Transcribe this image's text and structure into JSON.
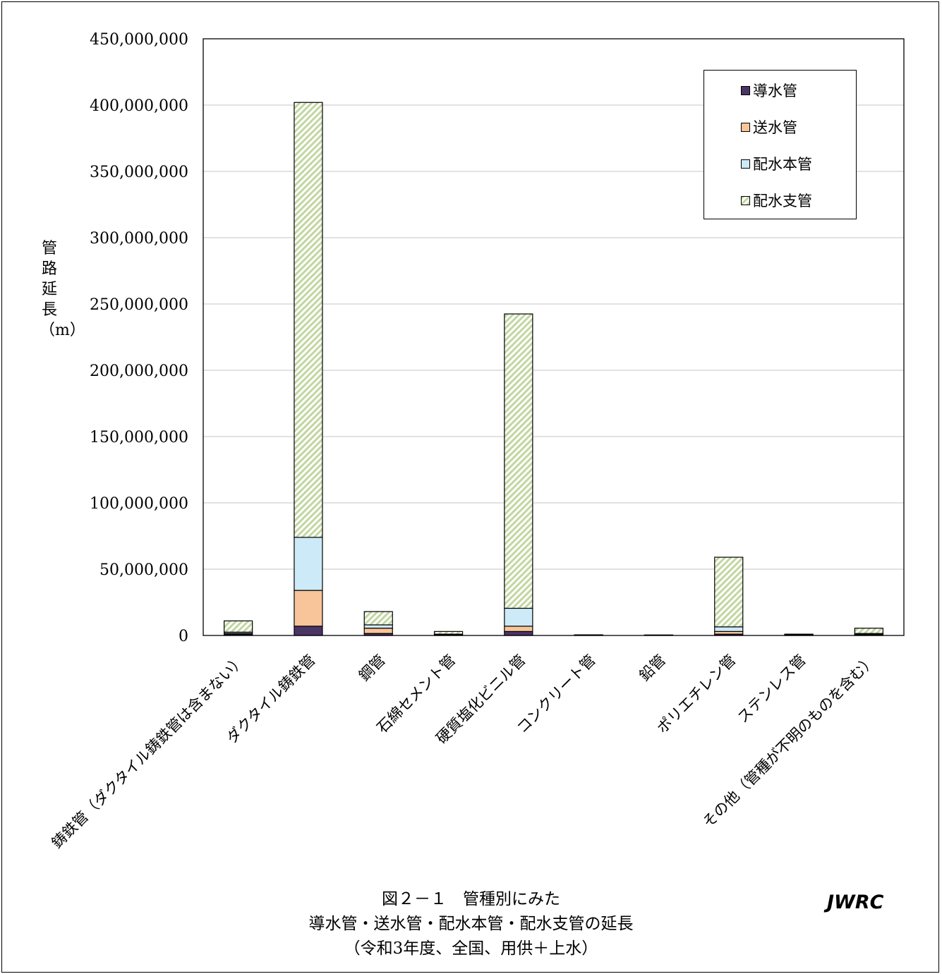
{
  "chart_data": {
    "type": "bar",
    "stacked": true,
    "categories": [
      "鋳鉄管（ダクタイル鋳鉄管は含まない）",
      "ダクタイル鋳鉄管",
      "鋼管",
      "石綿セメント管",
      "硬質塩化ビニル管",
      "コンクリート管",
      "鉛管",
      "ポリエチレン管",
      "ステンレス管",
      "その他（管種が不明のものを含む）"
    ],
    "series": [
      {
        "name": "導水管",
        "color": "#4b3466",
        "values": [
          1000000,
          7000000,
          1500000,
          200000,
          3000000,
          100000,
          0,
          1000000,
          300000,
          500000
        ]
      },
      {
        "name": "送水管",
        "color": "#f8c49a",
        "values": [
          500000,
          27000000,
          4000000,
          200000,
          4000000,
          100000,
          0,
          2000000,
          200000,
          300000
        ]
      },
      {
        "name": "配水本管",
        "color": "#cdeaf8",
        "values": [
          1000000,
          40000000,
          2500000,
          600000,
          13500000,
          100000,
          100000,
          3500000,
          300000,
          700000
        ]
      },
      {
        "name": "配水支管",
        "color": "#cfe0b2",
        "values": [
          8500000,
          328000000,
          10000000,
          2000000,
          222000000,
          200000,
          300000,
          52500000,
          200000,
          4000000
        ]
      }
    ],
    "ylabel": "管路延長（m）",
    "ylim": [
      0,
      450000000
    ],
    "yticks": [
      0,
      50000000,
      100000000,
      150000000,
      200000000,
      250000000,
      300000000,
      350000000,
      400000000,
      450000000
    ],
    "ytick_labels": [
      "0",
      "50,000,000",
      "100,000,000",
      "150,000,000",
      "200,000,000",
      "250,000,000",
      "300,000,000",
      "350,000,000",
      "400,000,000",
      "450,000,000"
    ],
    "grid": true,
    "legend_position": "top-right"
  },
  "caption": {
    "line1": "図２－１　管種別にみた",
    "line2": "導水管・送水管・配水本管・配水支管の延長",
    "line3": "（令和3年度、全国、用供＋上水）"
  },
  "brand": "JWRC"
}
